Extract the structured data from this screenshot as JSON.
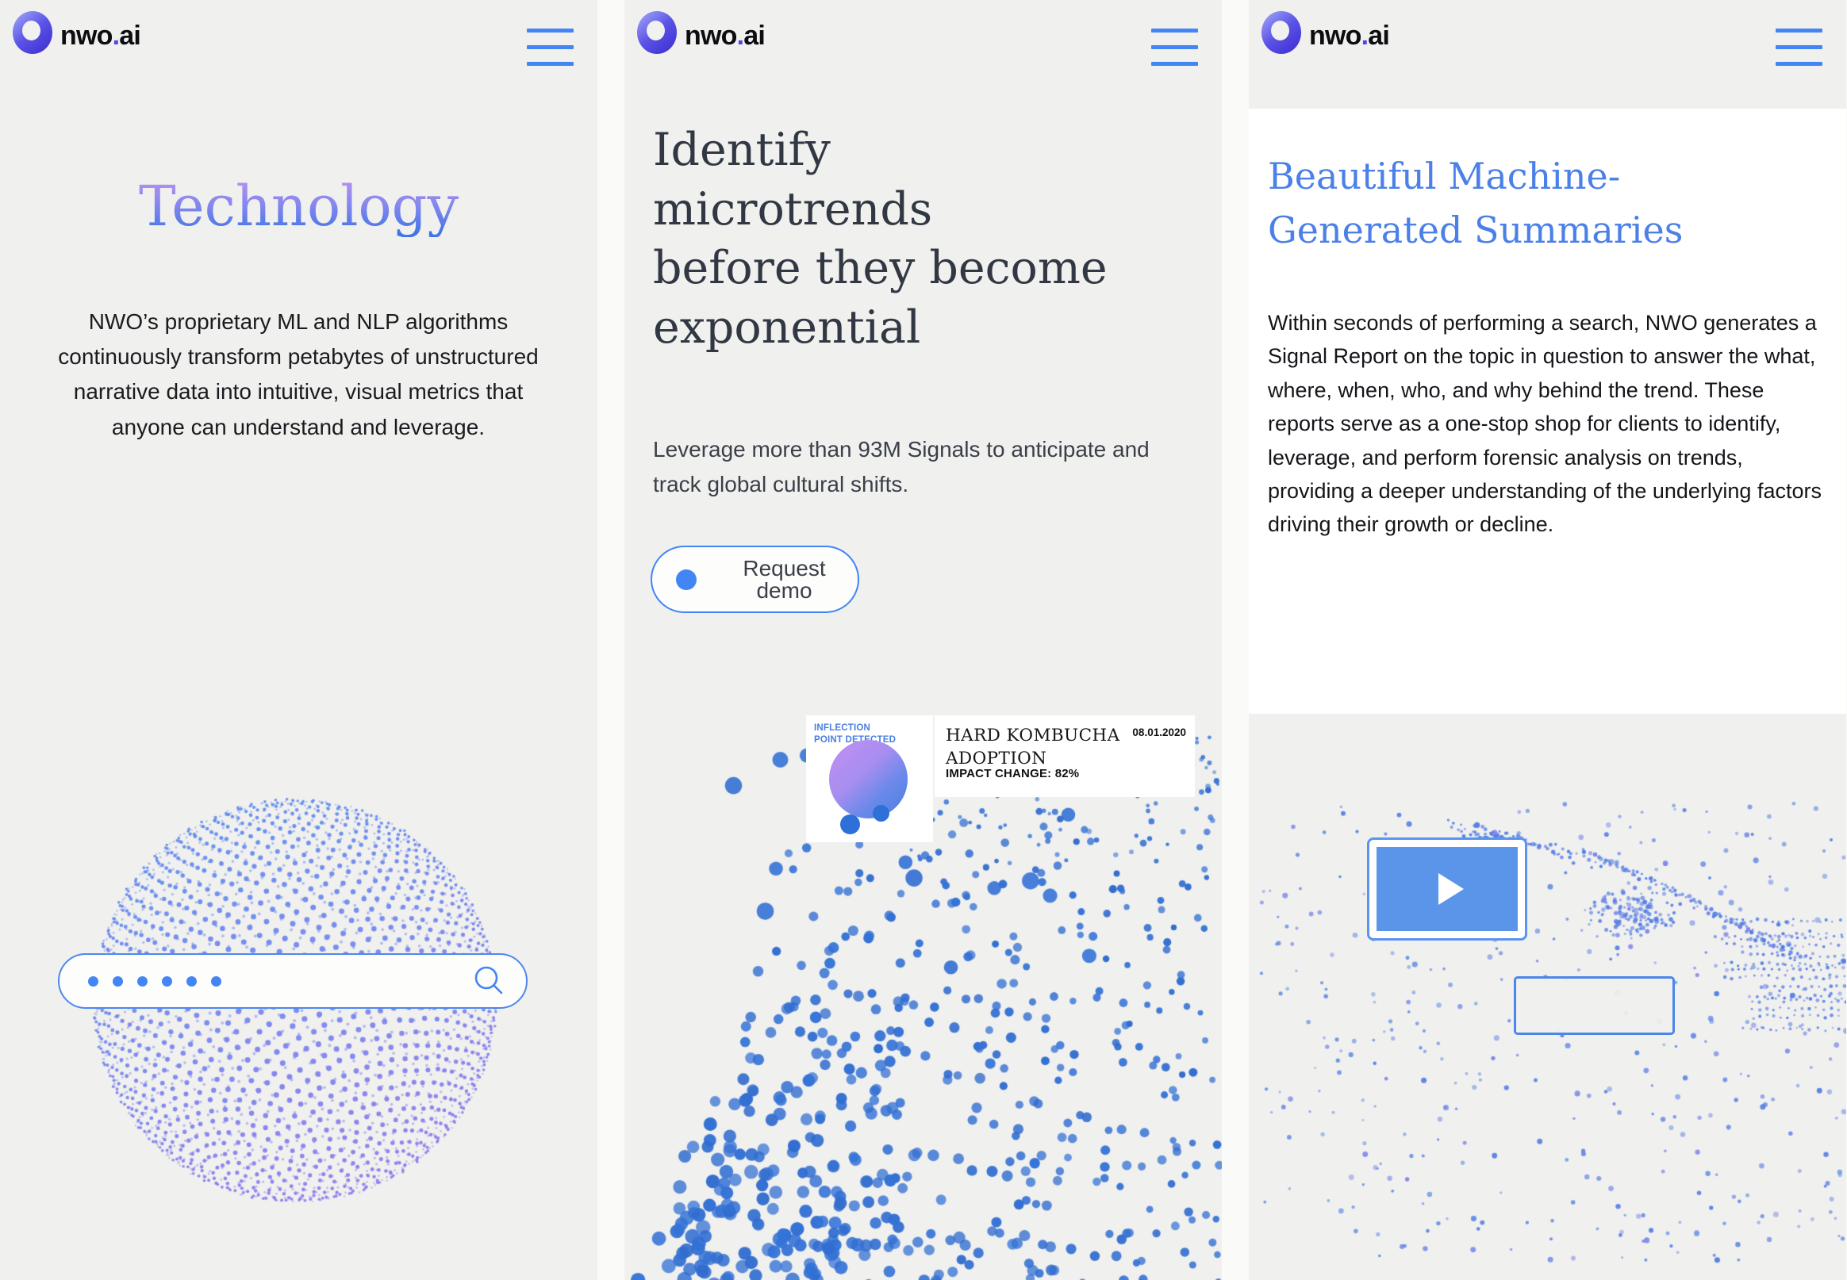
{
  "brand": {
    "logo_main": "nwo",
    "logo_dot": ".",
    "logo_suffix": "ai"
  },
  "nav": {
    "menu_icon": "hamburger-icon"
  },
  "accent": {
    "blue": "#4285f4",
    "indigo": "#5046e6"
  },
  "panels": {
    "technology": {
      "heading": "Technology",
      "body": "NWO’s proprietary ML and NLP algorithms continuously transform petabytes of unstructured narrative data into intuitive, visual metrics that anyone can understand and leverage.",
      "search_dots": 6,
      "search_icon": "magnifier-icon"
    },
    "microtrends": {
      "heading_lines": [
        "Identify",
        "microtrends",
        "before they become",
        "exponential"
      ],
      "body": "Leverage more than 93M Signals to anticipate and track global cultural shifts.",
      "cta": "Request demo",
      "card": {
        "tag": "INFLECTION POINT DETECTED",
        "title": "HARD KOMBUCHA ADOPTION",
        "date": "08.01.2020",
        "impact": "IMPACT CHANGE: 82%"
      }
    },
    "summaries": {
      "heading_lines": [
        "Beautiful Machine-",
        "Generated Summaries"
      ],
      "body": "Within seconds of performing a search, NWO generates a Signal Report on the topic in question to answer the what, where, when, who, and why behind the trend. These reports serve as a one-stop shop for clients to identify, leverage, and perform forensic analysis on trends, providing a deeper understanding of the underlying factors driving their growth or decline.",
      "play_icon": "play-icon"
    }
  },
  "viz_colors": {
    "sphere_blue": "#5c8cf0",
    "sphere_purple": "#8e7aee",
    "funnel_blue": "#3574d8",
    "swarm_blue": "#4b7ce4",
    "swarm_purple": "#7d82ea"
  }
}
